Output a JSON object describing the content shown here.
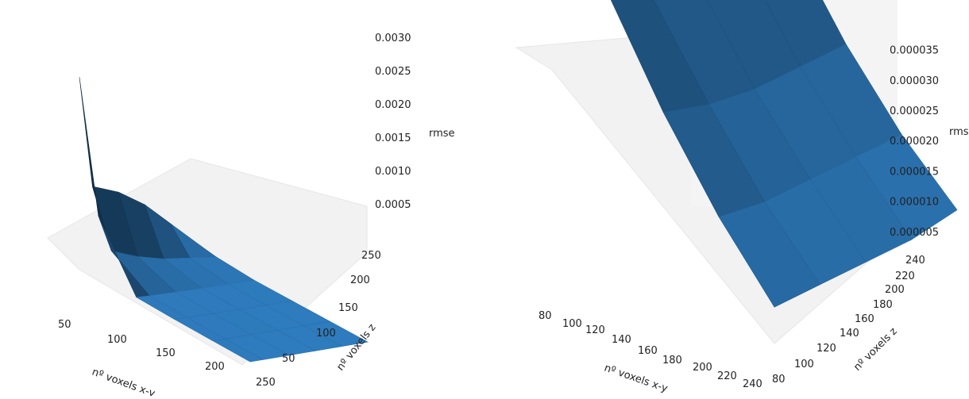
{
  "chart_data": [
    {
      "type": "surface3d",
      "xlabel": "nº voxels x-y",
      "ylabel": "nº voxels z",
      "zlabel": "rmse",
      "x_ticks": [
        "50",
        "100",
        "150",
        "200",
        "250"
      ],
      "y_ticks": [
        "50",
        "100",
        "150",
        "200",
        "250"
      ],
      "z_ticks": [
        "0.0005",
        "0.0010",
        "0.0015",
        "0.0020",
        "0.0025",
        "0.0030"
      ],
      "xlim": [
        25,
        250
      ],
      "ylim": [
        25,
        250
      ],
      "x": [
        25,
        50,
        100,
        150,
        200,
        250
      ],
      "y": [
        25,
        50,
        100,
        150,
        200,
        250
      ],
      "z": [
        [
          0.00285,
          0.0012,
          0.00105,
          0.0008,
          0.00045,
          0.0001
        ],
        [
          0.00095,
          0.0004,
          0.00025,
          0.00015,
          0.0001,
          5e-05
        ],
        [
          5e-05,
          4e-05,
          3e-05,
          2e-05,
          2e-05,
          1e-05
        ],
        [
          3e-05,
          2e-05,
          2e-05,
          1e-05,
          1e-05,
          1e-05
        ],
        [
          2e-05,
          1e-05,
          1e-05,
          1e-05,
          1e-05,
          1e-05
        ],
        [
          1e-05,
          1e-05,
          1e-05,
          1e-05,
          1e-05,
          1e-05
        ]
      ],
      "surface_color": "#2e7bbd"
    },
    {
      "type": "surface3d",
      "xlabel": "nº voxels x-y",
      "ylabel": "nº voxels z",
      "zlabel": "rmse",
      "x_ticks": [
        "80",
        "100",
        "120",
        "140",
        "160",
        "180",
        "200",
        "220",
        "240"
      ],
      "y_ticks": [
        "80",
        "100",
        "120",
        "140",
        "160",
        "180",
        "200",
        "220",
        "240"
      ],
      "z_ticks": [
        "0.000005",
        "0.000010",
        "0.000015",
        "0.000020",
        "0.000025",
        "0.000030",
        "0.000035"
      ],
      "xlim": [
        80,
        240
      ],
      "ylim": [
        80,
        240
      ],
      "x": [
        80,
        120,
        160,
        200,
        240
      ],
      "y": [
        80,
        120,
        160,
        200,
        240
      ],
      "z": [
        [
          3.2e-05,
          2.4e-05,
          2.1e-05,
          2.1e-05,
          2.1e-05
        ],
        [
          2e-05,
          1.5e-05,
          1.3e-05,
          1.2e-05,
          1.1e-05
        ],
        [
          1.3e-05,
          1e-05,
          8e-06,
          7e-06,
          6e-06
        ],
        [
          8e-06,
          6e-06,
          5e-06,
          4e-06,
          3e-06
        ],
        [
          5e-06,
          4e-06,
          3e-06,
          2e-06,
          2e-06
        ]
      ],
      "surface_color": "#2e7bbd"
    }
  ]
}
